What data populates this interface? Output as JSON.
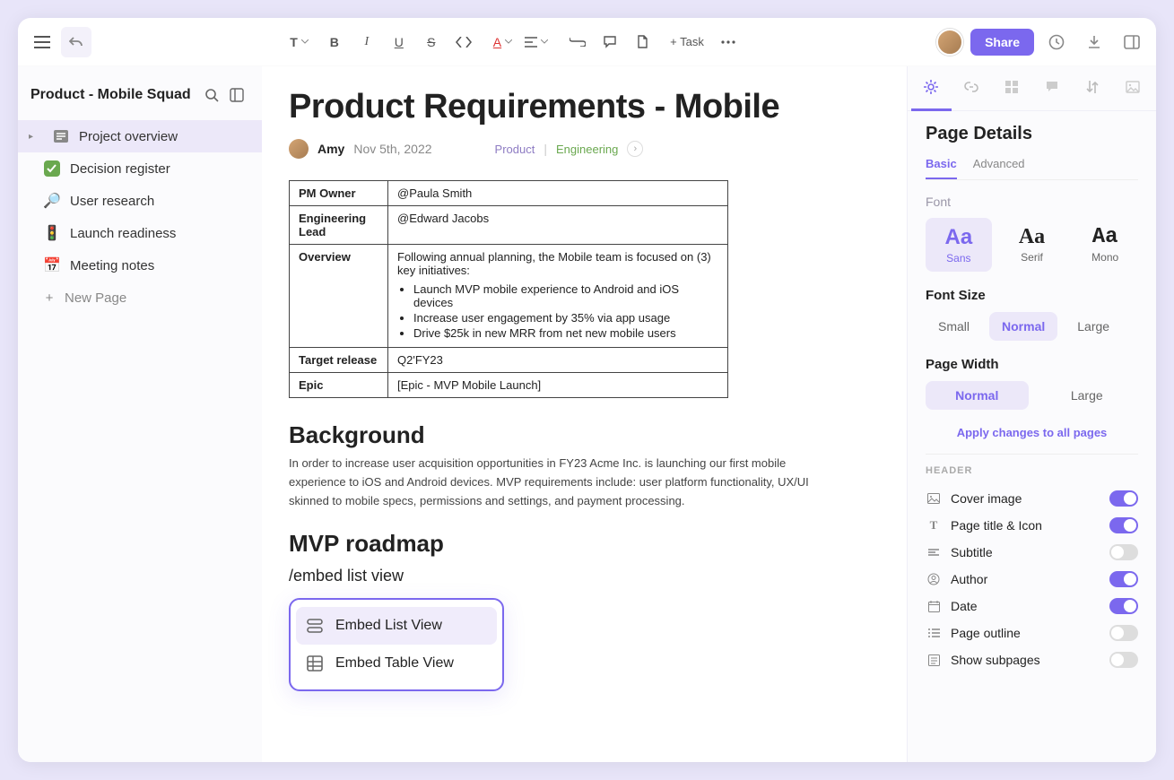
{
  "colors": {
    "accent": "#7b68ee",
    "bg_panel": "#fbfbfd",
    "sel_bg": "#ece8f9",
    "text_muted": "#888"
  },
  "topbar": {
    "task_label": "+ Task",
    "share_label": "Share"
  },
  "sidebar": {
    "title": "Product - Mobile Squad",
    "items": [
      {
        "icon": "doc",
        "label": "Project overview",
        "selected": true,
        "expandable": true
      },
      {
        "icon": "check",
        "label": "Decision register"
      },
      {
        "icon": "search",
        "label": "User research"
      },
      {
        "icon": "rocket",
        "label": "Launch readiness"
      },
      {
        "icon": "calendar",
        "label": "Meeting notes"
      }
    ],
    "new_page": "New Page"
  },
  "doc": {
    "title": "Product Requirements - Mobile",
    "author": "Amy",
    "date": "Nov 5th, 2022",
    "labels": [
      {
        "text": "Product",
        "color": "#8e7cc3"
      },
      {
        "text": "Engineering",
        "color": "#6aa84f"
      }
    ],
    "table": {
      "rows": [
        {
          "k": "PM Owner",
          "v": "@Paula Smith"
        },
        {
          "k": "Engineering Lead",
          "v": "@Edward Jacobs"
        },
        {
          "k": "Overview",
          "v_intro": "Following annual planning, the Mobile team is focused on (3) key initiatives:",
          "bullets": [
            "Launch MVP mobile experience to Android and iOS devices",
            "Increase user engagement by 35% via app usage",
            "Drive $25k in new MRR from net new mobile users"
          ]
        },
        {
          "k": "Target release",
          "v": "Q2'FY23"
        },
        {
          "k": "Epic",
          "v": "[Epic - MVP Mobile Launch]"
        }
      ]
    },
    "sections": {
      "background_h": "Background",
      "background_p": "In order to increase user acquisition opportunities in FY23 Acme Inc. is launching our first mobile experience to iOS and Android devices. MVP requirements include: user platform functionality, UX/UI skinned to mobile specs, permissions and settings, and payment processing.",
      "roadmap_h": "MVP roadmap",
      "slash": "/embed list view"
    },
    "popup": [
      {
        "label": "Embed List View",
        "selected": true
      },
      {
        "label": "Embed Table View"
      }
    ]
  },
  "details": {
    "title": "Page Details",
    "tabs": [
      "Basic",
      "Advanced"
    ],
    "active_tab": "Basic",
    "font_label": "Font",
    "fonts": [
      {
        "name": "Sans",
        "cls": "sans",
        "selected": true
      },
      {
        "name": "Serif",
        "cls": "serif"
      },
      {
        "name": "Mono",
        "cls": "mono"
      }
    ],
    "fontsize_label": "Font Size",
    "sizes": [
      "Small",
      "Normal",
      "Large"
    ],
    "size_selected": "Normal",
    "pagewidth_label": "Page Width",
    "widths": [
      "Normal",
      "Large"
    ],
    "width_selected": "Normal",
    "apply_all": "Apply changes to all pages",
    "header_label": "HEADER",
    "toggles": [
      {
        "icon": "image",
        "label": "Cover image",
        "on": true
      },
      {
        "icon": "T",
        "label": "Page title & Icon",
        "on": true
      },
      {
        "icon": "lines",
        "label": "Subtitle",
        "on": false
      },
      {
        "icon": "user",
        "label": "Author",
        "on": true
      },
      {
        "icon": "cal",
        "label": "Date",
        "on": true
      },
      {
        "icon": "outline",
        "label": "Page outline",
        "on": false
      },
      {
        "icon": "subpages",
        "label": "Show subpages",
        "on": false
      }
    ]
  }
}
